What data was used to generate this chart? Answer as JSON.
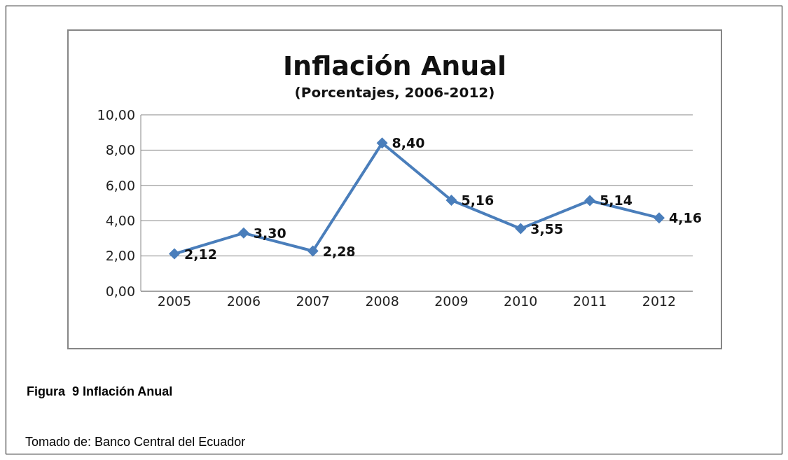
{
  "chart_data": {
    "type": "line",
    "title": "Inflación Anual",
    "subtitle": "(Porcentajes, 2006-2012)",
    "categories": [
      "2005",
      "2006",
      "2007",
      "2008",
      "2009",
      "2010",
      "2011",
      "2012"
    ],
    "series": [
      {
        "color": "#4a7ebb",
        "values": [
          2.12,
          3.3,
          2.28,
          8.4,
          5.16,
          3.55,
          5.14,
          4.16
        ],
        "value_labels": [
          "2,12",
          "3,30",
          "2,28",
          "8,40",
          "5,16",
          "3,55",
          "5,14",
          "4,16"
        ]
      }
    ],
    "ylim": [
      0,
      10
    ],
    "yticks": [
      {
        "value": 0,
        "label": "0,00"
      },
      {
        "value": 2,
        "label": "2,00"
      },
      {
        "value": 4,
        "label": "4,00"
      },
      {
        "value": 6,
        "label": "6,00"
      },
      {
        "value": 8,
        "label": "8,00"
      },
      {
        "value": 10,
        "label": "10,00"
      }
    ],
    "grid": "y",
    "legend": false,
    "marker": "diamond",
    "line_style": "solid",
    "annotations": [
      "Figura  9 Inflación Anual",
      "Tomado de: Banco Central del Ecuador"
    ]
  }
}
